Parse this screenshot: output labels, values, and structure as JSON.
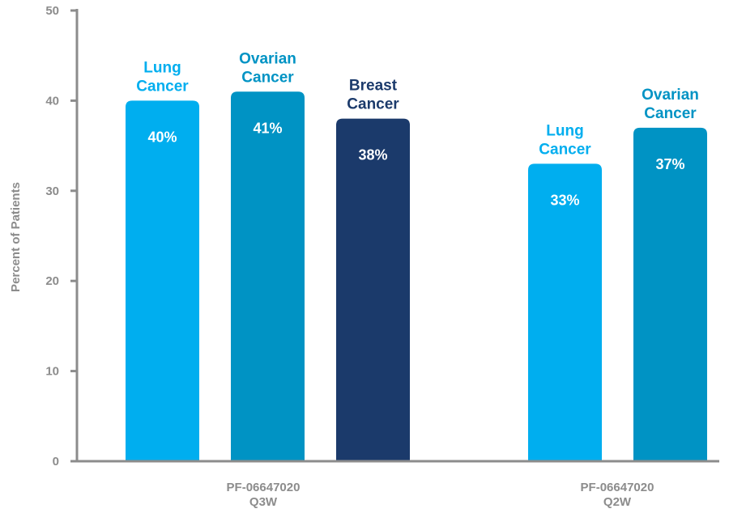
{
  "chart_data": {
    "type": "bar",
    "ylabel": "Percent of Patients",
    "ylim": [
      0,
      50
    ],
    "yticks": [
      0,
      10,
      20,
      30,
      40,
      50
    ],
    "grid": false,
    "legend": "none",
    "groups": [
      {
        "label_lines": [
          "PF-06647020",
          "Q3W"
        ],
        "bars": [
          {
            "label_lines": [
              "Lung",
              "Cancer"
            ],
            "value": 40,
            "value_label": "40%",
            "color": "#00aeef"
          },
          {
            "label_lines": [
              "Ovarian",
              "Cancer"
            ],
            "value": 41,
            "value_label": "41%",
            "color": "#0093c4"
          },
          {
            "label_lines": [
              "Breast",
              "Cancer"
            ],
            "value": 38,
            "value_label": "38%",
            "color": "#1b3a6b"
          }
        ]
      },
      {
        "label_lines": [
          "PF-06647020",
          "Q2W"
        ],
        "bars": [
          {
            "label_lines": [
              "Lung",
              "Cancer"
            ],
            "value": 33,
            "value_label": "33%",
            "color": "#00aeef"
          },
          {
            "label_lines": [
              "Ovarian",
              "Cancer"
            ],
            "value": 37,
            "value_label": "37%",
            "color": "#0093c4"
          }
        ]
      }
    ]
  },
  "colors": {
    "axis": "#8c8c8c",
    "value_text": "#ffffff"
  }
}
